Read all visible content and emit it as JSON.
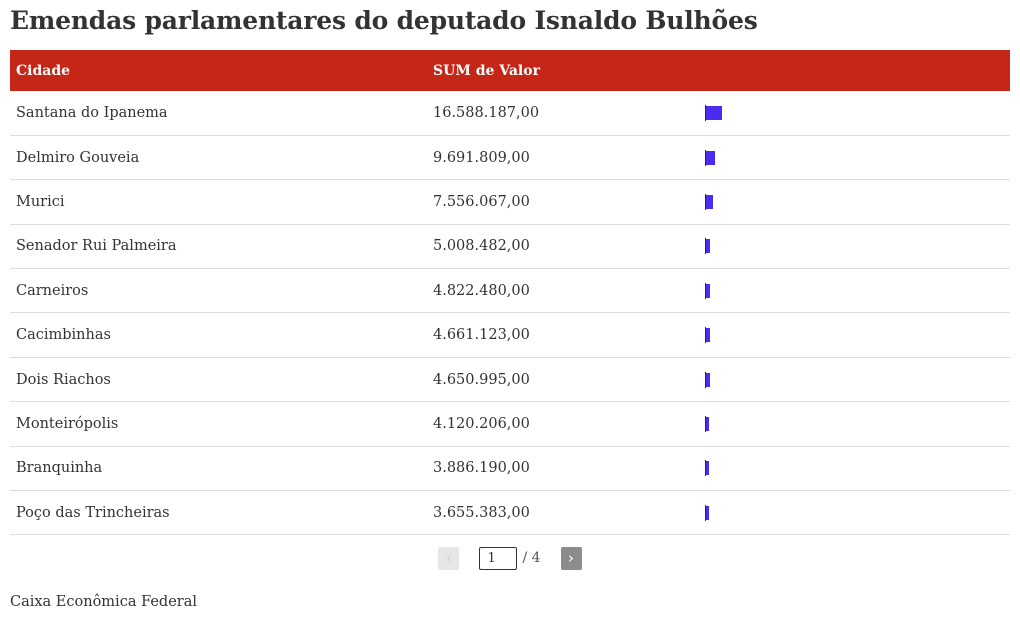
{
  "title": "Emendas parlamentares do deputado Isnaldo Bulhões",
  "columns": [
    "Cidade",
    "SUM de Valor"
  ],
  "colors": {
    "header": "#c42718",
    "bar": "#4a2bef"
  },
  "chart_data": {
    "type": "table",
    "categories": [
      "Santana do Ipanema",
      "Delmiro Gouveia",
      "Murici",
      "Senador Rui Palmeira",
      "Carneiros",
      "Cacimbinhas",
      "Dois Riachos",
      "Monteirópolis",
      "Branquinha",
      "Poço das Trincheiras"
    ],
    "values": [
      16588187,
      9691809,
      7556067,
      5008482,
      4822480,
      4661123,
      4650995,
      4120206,
      3886190,
      3655383
    ],
    "display_values": [
      "16.588.187,00",
      "9.691.809,00",
      "7.556.067,00",
      "5.008.482,00",
      "4.822.480,00",
      "4.661.123,00",
      "4.650.995,00",
      "4.120.206,00",
      "3.886.190,00",
      "3.655.383,00"
    ],
    "bar_max": 300000000
  },
  "pager": {
    "prev": "‹",
    "next": "›",
    "current": "1",
    "total": "/ 4"
  },
  "source": "Caixa Econômica Federal"
}
